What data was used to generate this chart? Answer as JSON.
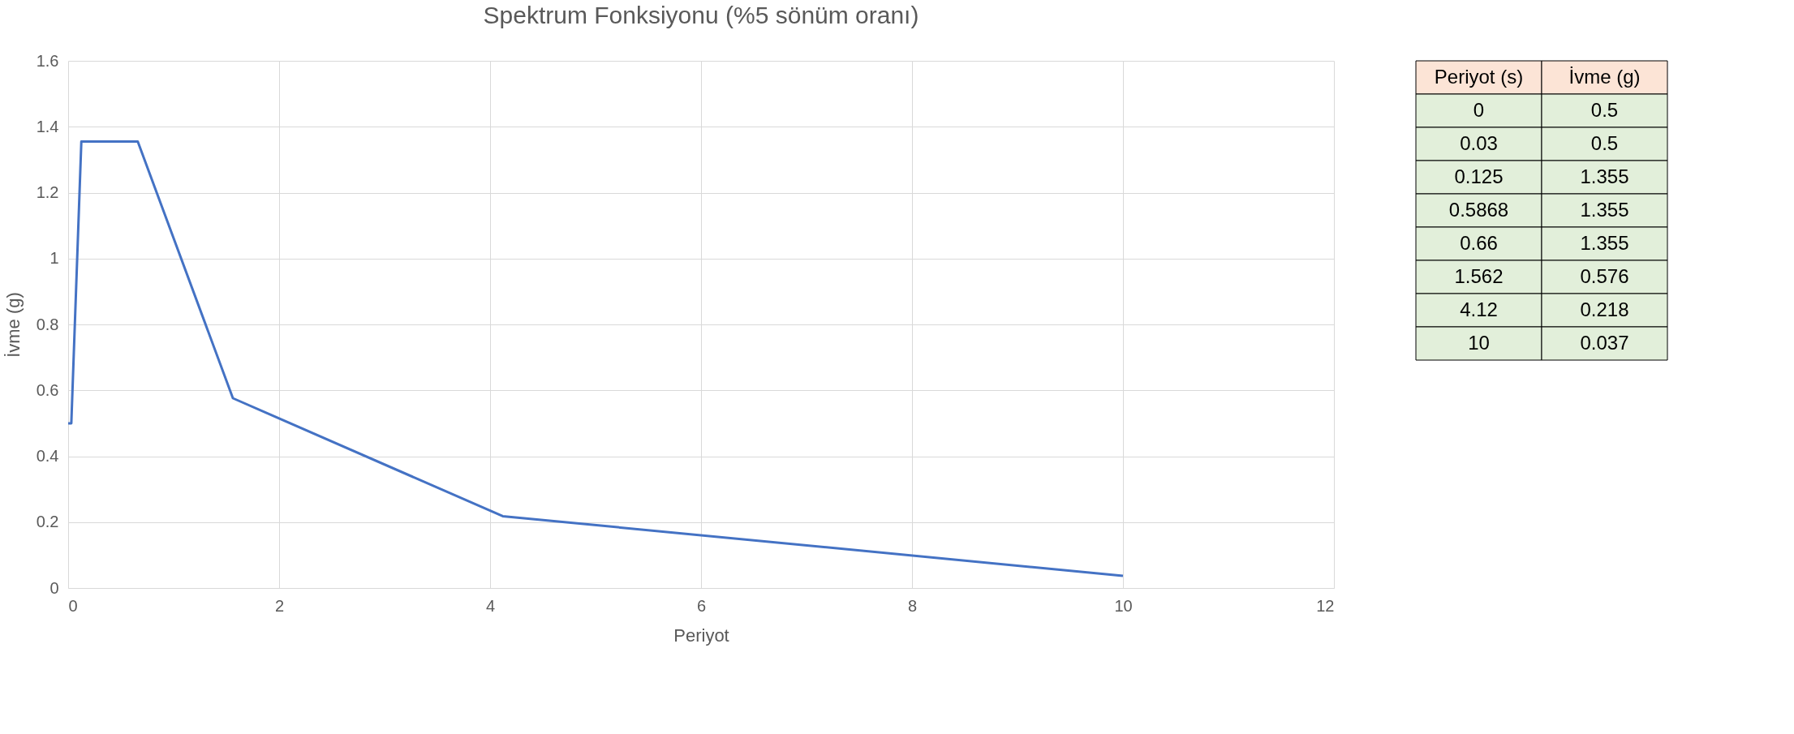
{
  "chart_data": {
    "type": "line",
    "title": "Spektrum Fonksiyonu (%5 sönüm oranı)",
    "xlabel": "Periyot",
    "ylabel": "İvme (g)",
    "x": [
      0,
      0.03,
      0.125,
      0.5868,
      0.66,
      1.562,
      4.12,
      10
    ],
    "series": [
      {
        "color": "#4472c4",
        "values": [
          0.5,
          0.5,
          1.355,
          1.355,
          1.355,
          0.576,
          0.218,
          0.037
        ]
      }
    ],
    "xlim": [
      0,
      12
    ],
    "xticks": [
      0,
      2,
      4,
      6,
      8,
      10,
      12
    ],
    "ylim": [
      0,
      1.6
    ],
    "yticks": [
      0,
      0.2,
      0.4,
      0.6,
      0.8,
      1,
      1.2,
      1.4,
      1.6
    ],
    "grid": true,
    "marker": "none",
    "line_style": "solid",
    "annotations": [
      "Periyot (s)",
      "İvme (g)",
      "0",
      "0.5",
      "0.03",
      "0.5",
      "0.125",
      "1.355",
      "0.5868",
      "1.355",
      "0.66",
      "1.355",
      "1.562",
      "0.576",
      "4.12",
      "0.218",
      "10",
      "0.037"
    ]
  }
}
